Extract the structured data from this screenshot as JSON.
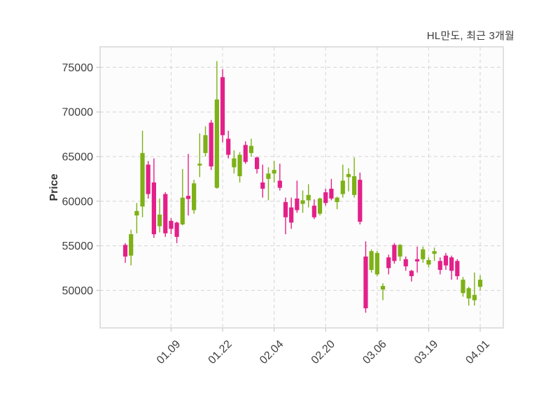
{
  "chart_data": {
    "type": "candlestick",
    "title": "HL만도, 최근 3개월",
    "ylabel": "Price",
    "xlabel": "",
    "legend": "none",
    "grid": "dashed",
    "ylim": [
      45800,
      77300
    ],
    "y_ticks": [
      50000,
      55000,
      60000,
      65000,
      70000,
      75000
    ],
    "x_tick_labels": [
      "01.09",
      "01.22",
      "02.04",
      "02.20",
      "03.06",
      "03.19",
      "04.01"
    ],
    "x_tick_indices": [
      8,
      17,
      26,
      35,
      44,
      53,
      62
    ],
    "up_color": "#7db117",
    "down_color": "#e32089",
    "grid_color": "#d8d8d8",
    "spine_color": "#e0e0e0",
    "tick_label_color": "#3f3f3f",
    "plot_bg": "#fcfcfc",
    "candles_ohlc": [
      [
        55100,
        55300,
        53100,
        53800
      ],
      [
        53900,
        56800,
        52800,
        56300
      ],
      [
        58400,
        59800,
        56400,
        58900
      ],
      [
        59400,
        67900,
        58200,
        65400
      ],
      [
        64100,
        64500,
        60300,
        60800
      ],
      [
        62100,
        64800,
        55900,
        56300
      ],
      [
        57200,
        60300,
        56500,
        58500
      ],
      [
        60800,
        61000,
        56000,
        56400
      ],
      [
        57800,
        58100,
        56300,
        56900
      ],
      [
        57600,
        57700,
        55300,
        56000
      ],
      [
        57400,
        63600,
        57300,
        60400
      ],
      [
        60600,
        65300,
        58400,
        60250
      ],
      [
        59000,
        62400,
        58600,
        62000
      ],
      [
        64000,
        67600,
        62700,
        64200
      ],
      [
        65400,
        68400,
        65000,
        67400
      ],
      [
        68800,
        69100,
        63500,
        63900
      ],
      [
        61500,
        75700,
        61400,
        71400
      ],
      [
        73900,
        74800,
        66600,
        67400
      ],
      [
        67000,
        67900,
        64800,
        65200
      ],
      [
        63800,
        65700,
        63100,
        64800
      ],
      [
        62800,
        65500,
        62100,
        65200
      ],
      [
        66300,
        66700,
        64200,
        64400
      ],
      [
        65400,
        67000,
        65000,
        66200
      ],
      [
        64900,
        65000,
        63100,
        63600
      ],
      [
        62100,
        64100,
        60400,
        61400
      ],
      [
        62500,
        63800,
        60100,
        63100
      ],
      [
        63100,
        64500,
        62100,
        63500
      ],
      [
        62300,
        64200,
        61200,
        61500
      ],
      [
        59900,
        60400,
        56300,
        58200
      ],
      [
        59300,
        60400,
        56900,
        57600
      ],
      [
        60300,
        62300,
        58700,
        59000
      ],
      [
        59700,
        61200,
        58700,
        60100
      ],
      [
        60100,
        61900,
        59300,
        60700
      ],
      [
        59500,
        60200,
        58000,
        58200
      ],
      [
        58600,
        60400,
        58400,
        60300
      ],
      [
        61000,
        61400,
        59500,
        59800
      ],
      [
        61400,
        62500,
        60100,
        60300
      ],
      [
        59900,
        60500,
        59100,
        60400
      ],
      [
        60800,
        64100,
        60400,
        62300
      ],
      [
        62700,
        63700,
        61100,
        63050
      ],
      [
        60700,
        64900,
        60400,
        62800
      ],
      [
        62400,
        63200,
        57400,
        57700
      ],
      [
        53800,
        55500,
        47500,
        48000
      ],
      [
        52300,
        54600,
        52000,
        54400
      ],
      [
        51800,
        54400,
        51600,
        54200
      ],
      [
        50100,
        50800,
        48900,
        50500
      ],
      [
        53700,
        54000,
        51800,
        52500
      ],
      [
        55100,
        55300,
        53000,
        53300
      ],
      [
        53800,
        55200,
        53300,
        55100
      ],
      [
        53500,
        53800,
        52200,
        52700
      ],
      [
        52200,
        52300,
        51000,
        51600
      ],
      [
        53500,
        54900,
        52000,
        53250
      ],
      [
        53500,
        54900,
        53100,
        54600
      ],
      [
        52900,
        53700,
        52600,
        53400
      ],
      [
        54100,
        54800,
        53300,
        54400
      ],
      [
        53300,
        53700,
        51800,
        52300
      ],
      [
        53900,
        54200,
        52300,
        52800
      ],
      [
        53700,
        53900,
        51200,
        52200
      ],
      [
        53300,
        53500,
        51200,
        51600
      ],
      [
        49700,
        51500,
        49300,
        51200
      ],
      [
        49100,
        50400,
        48300,
        50250
      ],
      [
        48900,
        52000,
        48300,
        49500
      ],
      [
        50400,
        51700,
        50000,
        51200
      ]
    ]
  }
}
